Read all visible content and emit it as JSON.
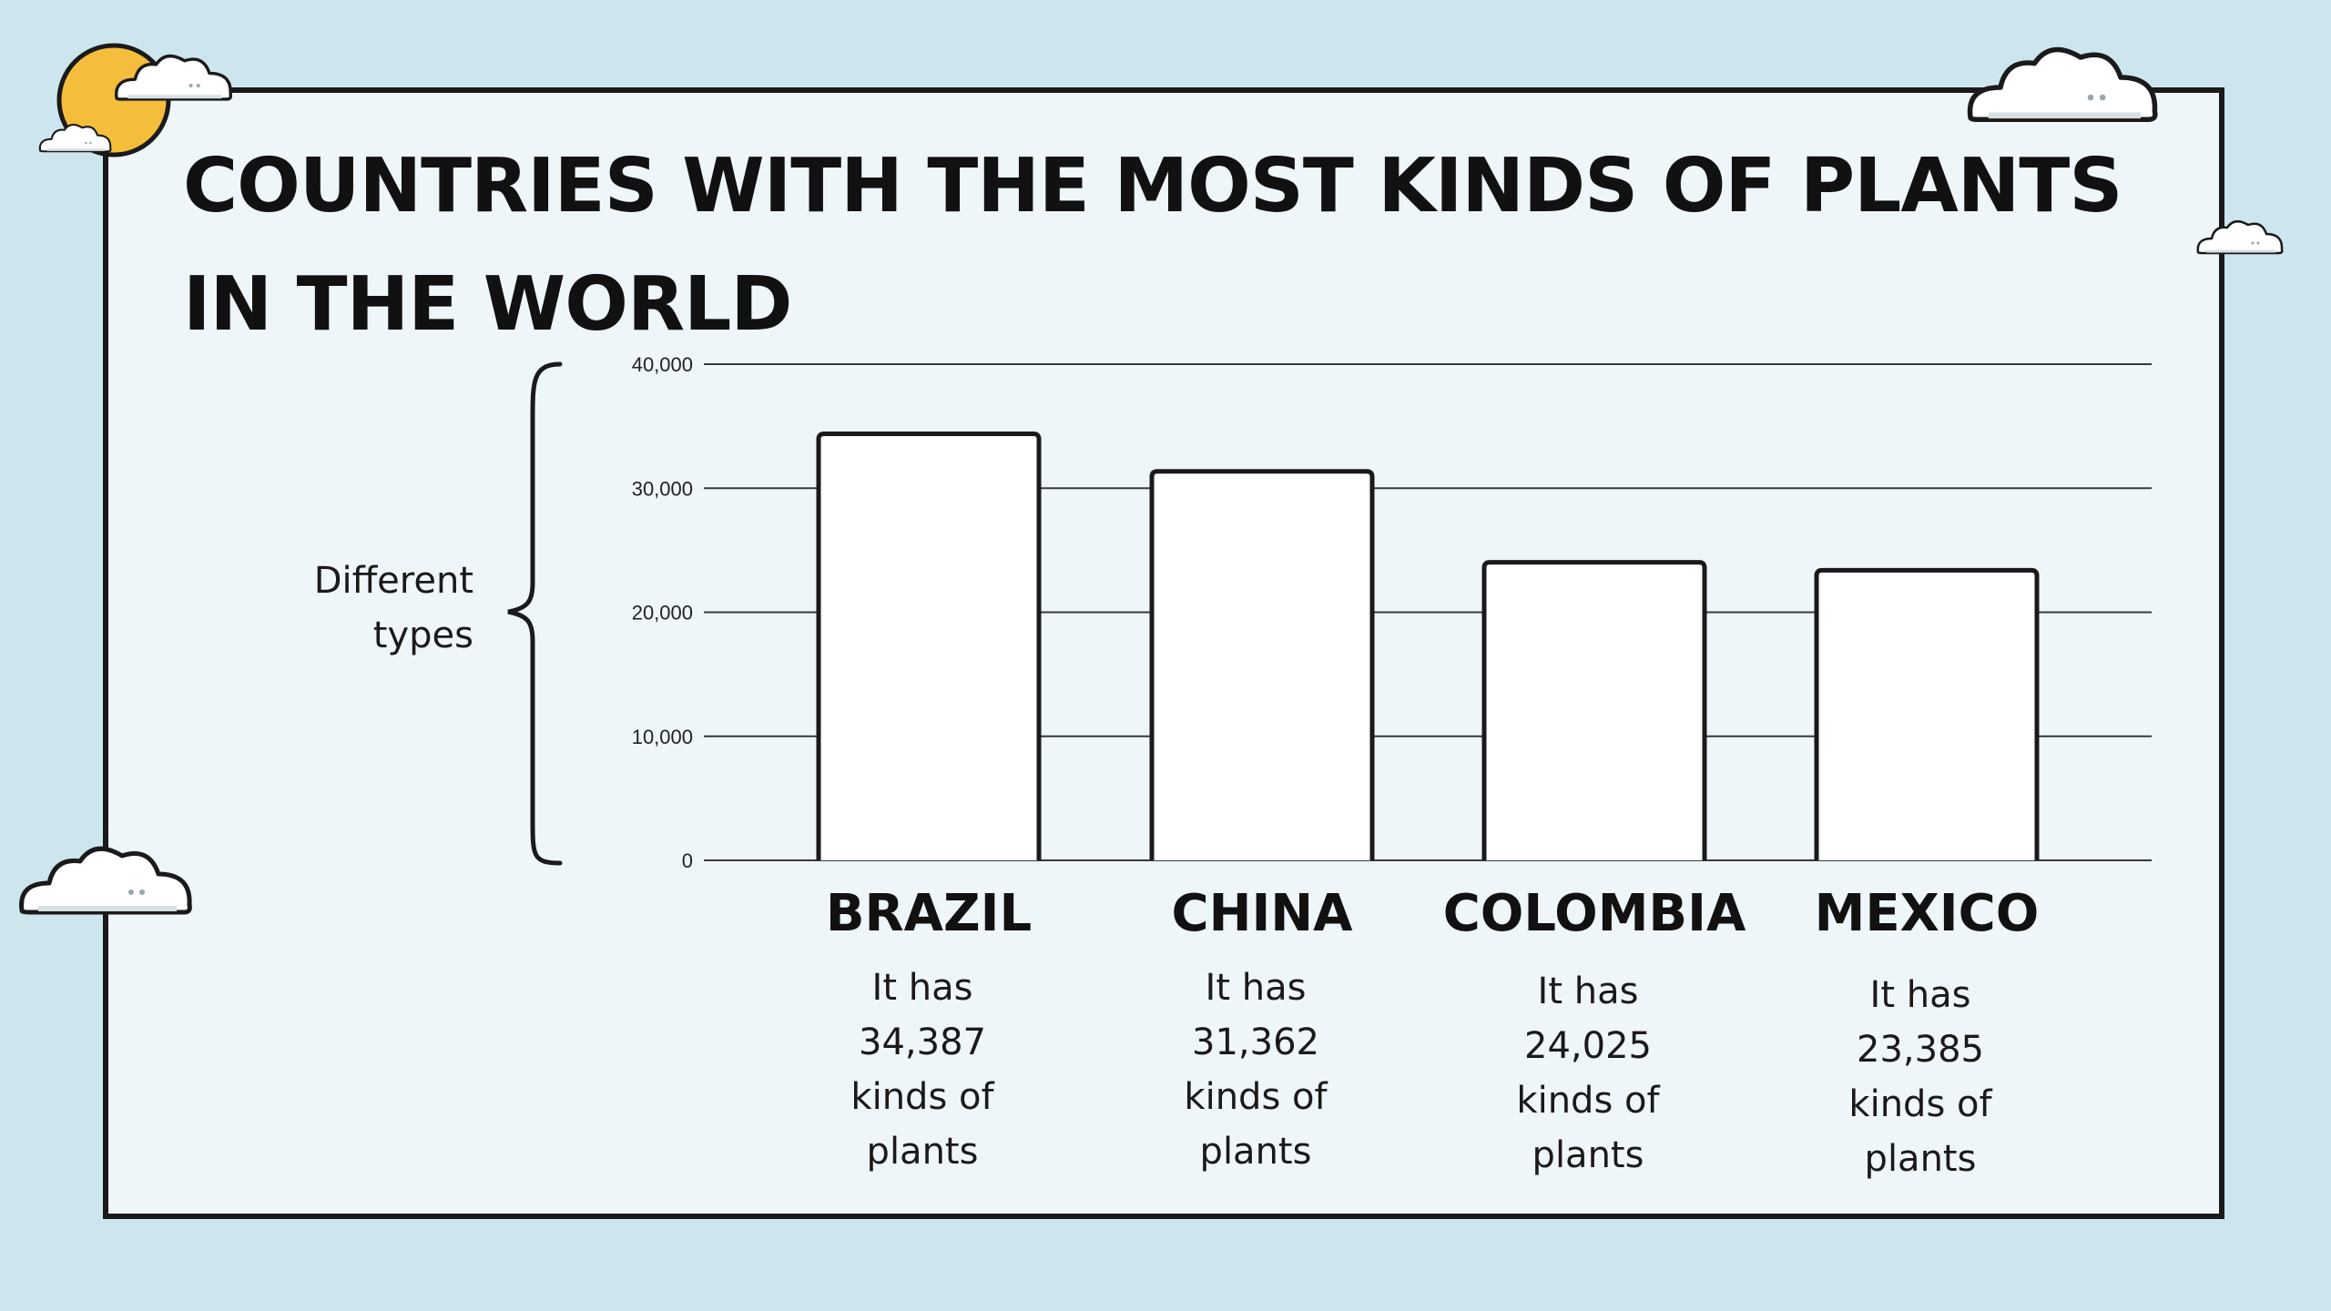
{
  "slide": {
    "title_line1": "COUNTRIES WITH THE MOST KINDS OF PLANTS",
    "title_line2": "IN THE WORLD",
    "ylabel_line1": "Different",
    "ylabel_line2": "types",
    "colors": {
      "background": "#cde6ee",
      "card": "#eff6fa",
      "sun": "#f4bd3b",
      "bar_fill": "#ffffff",
      "outline": "#1a1a1a"
    }
  },
  "decor": [
    "sun-icon",
    "cloud-icon"
  ],
  "chart_data": {
    "type": "bar",
    "title": "COUNTRIES WITH THE MOST KINDS OF PLANTS IN THE WORLD",
    "ylabel": "Different types",
    "xlabel": "",
    "categories": [
      "BRAZIL",
      "CHINA",
      "COLOMBIA",
      "MEXICO"
    ],
    "values": [
      34387,
      31362,
      24025,
      23385
    ],
    "ylim": [
      0,
      40000
    ],
    "yticks": [
      0,
      10000,
      20000,
      30000,
      40000
    ],
    "ytick_labels": [
      "0",
      "10,000",
      "20,000",
      "30,000",
      "40,000"
    ],
    "grid": true,
    "descriptions": [
      [
        "It has",
        "34,387",
        "kinds of",
        "plants"
      ],
      [
        "It has",
        "31,362",
        "kinds of",
        "plants"
      ],
      [
        "It has",
        "24,025",
        "kinds of",
        "plants"
      ],
      [
        "It has",
        "23,385",
        "kinds of",
        "plants"
      ]
    ]
  }
}
